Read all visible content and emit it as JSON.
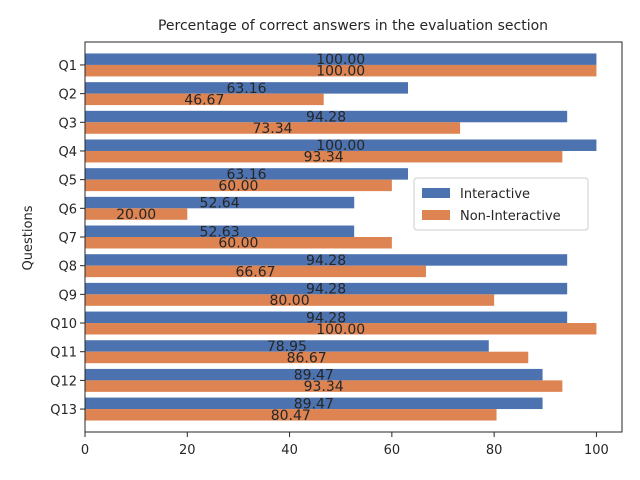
{
  "chart_data": {
    "type": "bar",
    "orientation": "horizontal",
    "title": "Percentage of correct answers in the evaluation section",
    "xlabel": "",
    "ylabel": "Questions",
    "xlim": [
      0,
      105
    ],
    "xticks": [
      0,
      20,
      40,
      60,
      80,
      100
    ],
    "grid": false,
    "legend_placement": "center-right",
    "categories": [
      "Q1",
      "Q2",
      "Q3",
      "Q4",
      "Q5",
      "Q6",
      "Q7",
      "Q8",
      "Q9",
      "Q10",
      "Q11",
      "Q12",
      "Q13"
    ],
    "series": [
      {
        "name": "Interactive",
        "color": "#4c72b0",
        "values": [
          100.0,
          63.16,
          94.28,
          100.0,
          63.16,
          52.64,
          52.63,
          94.28,
          94.28,
          94.28,
          78.95,
          89.47,
          89.47
        ],
        "labels": [
          "100.00",
          "63.16",
          "94.28",
          "100.00",
          "63.16",
          "52.64",
          "52.63",
          "94.28",
          "94.28",
          "94.28",
          "78.95",
          "89.47",
          "89.47"
        ]
      },
      {
        "name": "Non-Interactive",
        "color": "#dd8452",
        "values": [
          100.0,
          46.67,
          73.34,
          93.34,
          60.0,
          20.0,
          60.0,
          66.67,
          80.0,
          100.0,
          86.67,
          93.34,
          80.47
        ],
        "labels": [
          "100.00",
          "46.67",
          "73.34",
          "93.34",
          "60.00",
          "20.00",
          "60.00",
          "66.67",
          "80.00",
          "100.00",
          "86.67",
          "93.34",
          "80.47"
        ]
      }
    ]
  }
}
